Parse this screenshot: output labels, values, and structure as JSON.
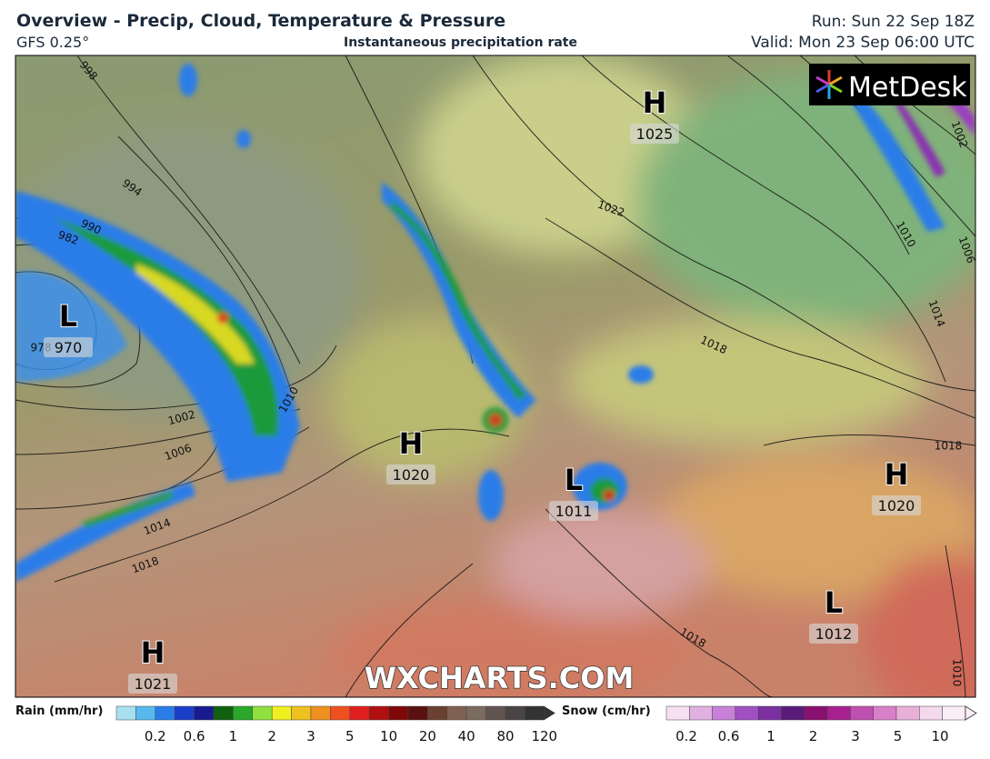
{
  "header": {
    "title": "Overview - Precip, Cloud, Temperature & Pressure",
    "model": "GFS 0.25°",
    "product": "Instantaneous precipitation rate",
    "run": "Run: Sun 22 Sep 18Z",
    "valid": "Valid: Mon 23 Sep 06:00 UTC"
  },
  "map": {
    "logo": "MetDesk",
    "watermark": "WXCHARTS.COM",
    "pressure_centers": [
      {
        "symbol": "H",
        "value": 1025
      },
      {
        "symbol": "L",
        "value": 970
      },
      {
        "symbol": "H",
        "value": 1020
      },
      {
        "symbol": "L",
        "value": 1011
      },
      {
        "symbol": "H",
        "value": 1020
      },
      {
        "symbol": "L",
        "value": 1012
      },
      {
        "symbol": "H",
        "value": 1021
      }
    ],
    "isobar_labels": [
      998,
      994,
      990,
      982,
      978,
      1002,
      1006,
      1010,
      1014,
      1018,
      1022,
      1018,
      1014,
      1010,
      1006,
      1002,
      1018,
      1018,
      1010
    ]
  },
  "legend": {
    "rain": {
      "title": "Rain (mm/hr)",
      "labels": [
        0.2,
        0.6,
        1,
        2,
        3,
        5,
        10,
        20,
        40,
        80,
        120
      ]
    },
    "snow": {
      "title": "Snow (cm/hr)",
      "labels": [
        0.2,
        0.6,
        1,
        2,
        3,
        5,
        10
      ]
    }
  }
}
